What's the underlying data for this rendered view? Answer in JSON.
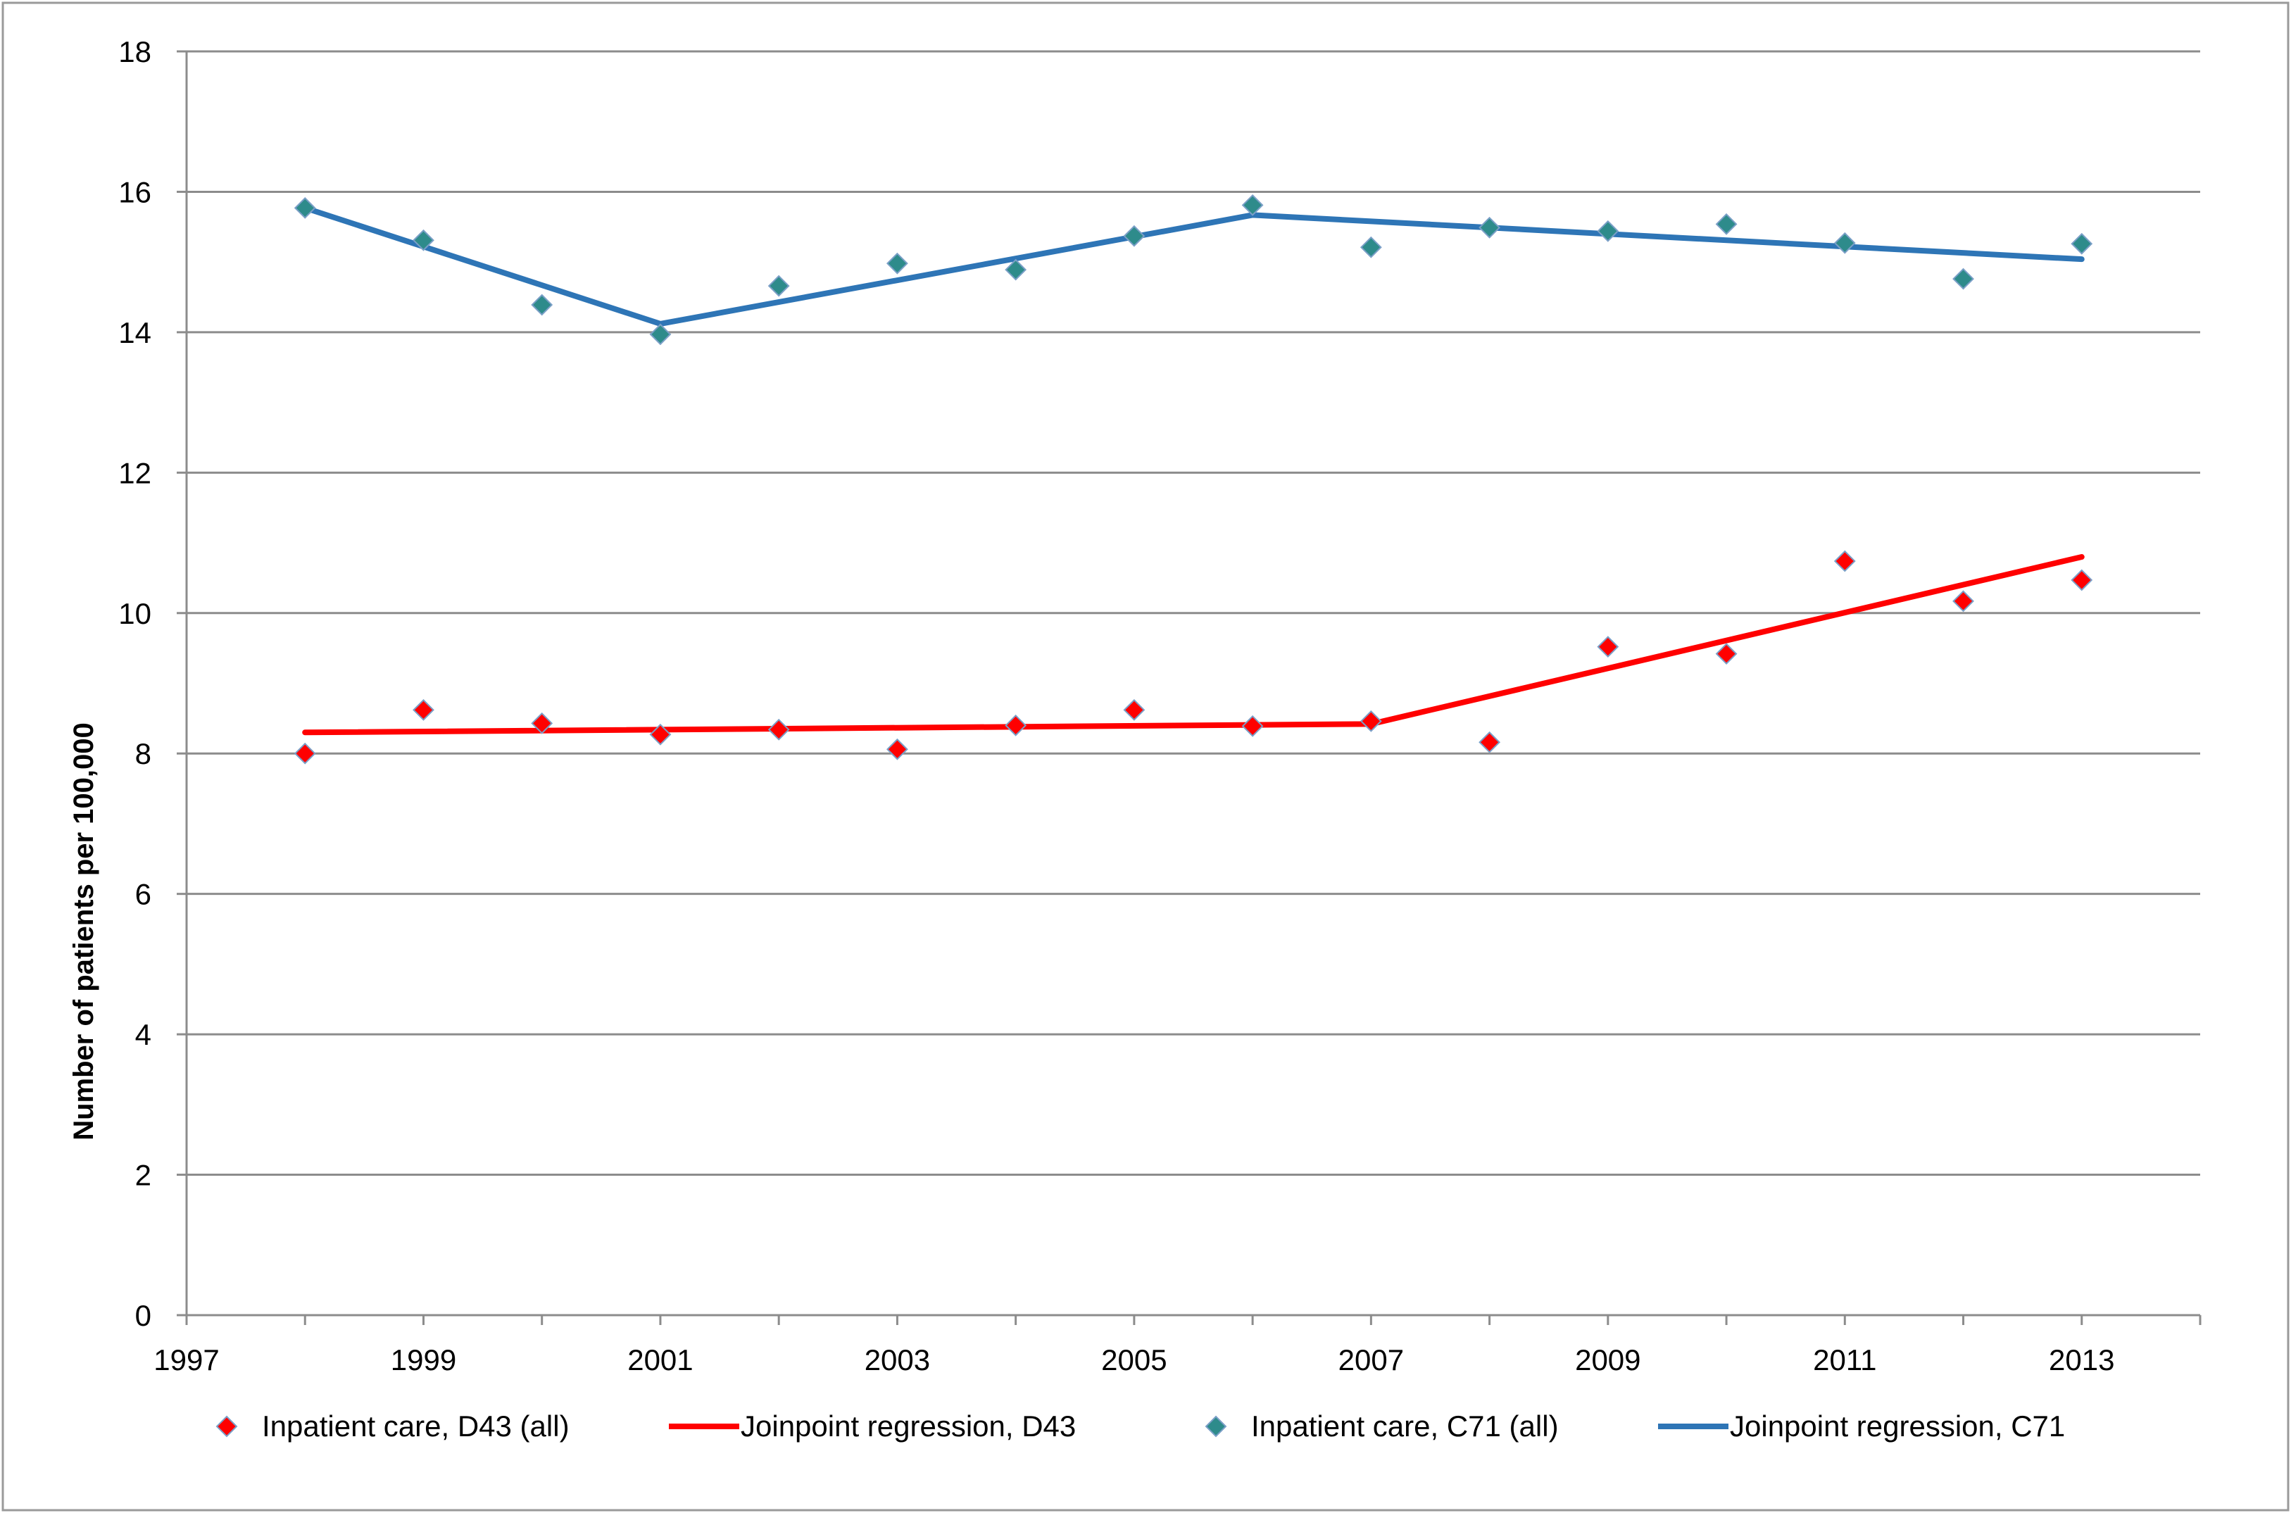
{
  "chart_data": {
    "type": "scatter",
    "title": "",
    "xlabel": "",
    "ylabel": "Number of patients per 100,000",
    "xlim": [
      1997,
      2014
    ],
    "ylim": [
      0,
      18
    ],
    "x_ticks": [
      1997,
      1999,
      2001,
      2003,
      2005,
      2007,
      2009,
      2011,
      2013
    ],
    "y_ticks": [
      0,
      2,
      4,
      6,
      8,
      10,
      12,
      14,
      16,
      18
    ],
    "x_tick_labels": [
      "1997",
      "1999",
      "2001",
      "2003",
      "2005",
      "2007",
      "2009",
      "2011",
      "2013"
    ],
    "y_tick_labels": [
      "0",
      "2",
      "4",
      "6",
      "8",
      "10",
      "12",
      "14",
      "16",
      "18"
    ],
    "grid": "horizontal",
    "legend_position": "bottom",
    "series": [
      {
        "name": "Inpatient care, D43 (all)",
        "kind": "markers",
        "color": "#ff0000",
        "x": [
          1998,
          1999,
          2000,
          2001,
          2002,
          2003,
          2004,
          2005,
          2006,
          2007,
          2008,
          2009,
          2010,
          2011,
          2012,
          2013
        ],
        "y": [
          8.0,
          8.62,
          8.43,
          8.27,
          8.34,
          8.06,
          8.4,
          8.62,
          8.39,
          8.46,
          8.16,
          9.52,
          9.42,
          10.74,
          10.17,
          10.47
        ]
      },
      {
        "name": "Joinpoint regression, D43",
        "kind": "line",
        "color": "#ff0000",
        "x": [
          1998,
          2007,
          2013
        ],
        "y": [
          8.3,
          8.42,
          10.8
        ]
      },
      {
        "name": "Inpatient care, C71 (all)",
        "kind": "markers",
        "color": "#2e8b8b",
        "x": [
          1998,
          1999,
          2000,
          2001,
          2002,
          2003,
          2004,
          2005,
          2006,
          2007,
          2008,
          2009,
          2010,
          2011,
          2012,
          2013
        ],
        "y": [
          15.77,
          15.31,
          14.39,
          13.97,
          14.66,
          14.98,
          14.89,
          15.37,
          15.81,
          15.21,
          15.49,
          15.44,
          15.54,
          15.27,
          14.76,
          15.26
        ]
      },
      {
        "name": "Joinpoint regression, C71",
        "kind": "line",
        "color": "#2e75b6",
        "x": [
          1998,
          2001,
          2006,
          2013
        ],
        "y": [
          15.77,
          14.12,
          15.67,
          15.04
        ]
      }
    ]
  }
}
